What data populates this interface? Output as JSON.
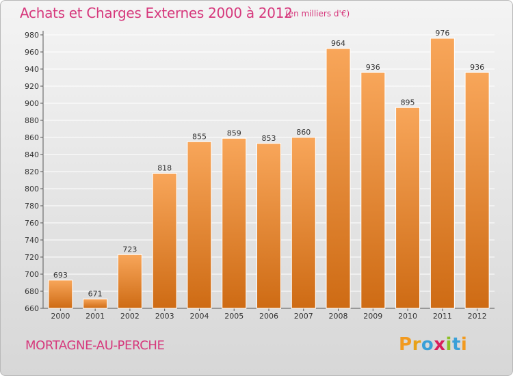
{
  "title": "Achats et Charges Externes 2000 à 2012",
  "units_label": "(en milliers d'€)",
  "commune": "MORTAGNE-AU-PERCHE",
  "logo": {
    "text": "Proxiti",
    "letter_colors": [
      "#f29a1f",
      "#e8a218",
      "#3aa0d8",
      "#d81e5b",
      "#8cbf26",
      "#3aa0d8",
      "#f29a1f"
    ]
  },
  "colors": {
    "bar_light": "#f8a65a",
    "bar_dark": "#ce6b14",
    "title": "#d6387c",
    "grid": "#ffffff"
  },
  "chart_data": {
    "type": "bar",
    "categories": [
      "2000",
      "2001",
      "2002",
      "2003",
      "2004",
      "2005",
      "2006",
      "2007",
      "2008",
      "2009",
      "2010",
      "2011",
      "2012"
    ],
    "values": [
      693,
      671,
      723,
      818,
      855,
      859,
      853,
      860,
      964,
      936,
      895,
      976,
      936
    ],
    "yticks": [
      660,
      680,
      700,
      720,
      740,
      760,
      780,
      800,
      820,
      840,
      860,
      880,
      900,
      920,
      940,
      960,
      980
    ],
    "ylim": [
      660,
      980
    ],
    "grid": true
  }
}
